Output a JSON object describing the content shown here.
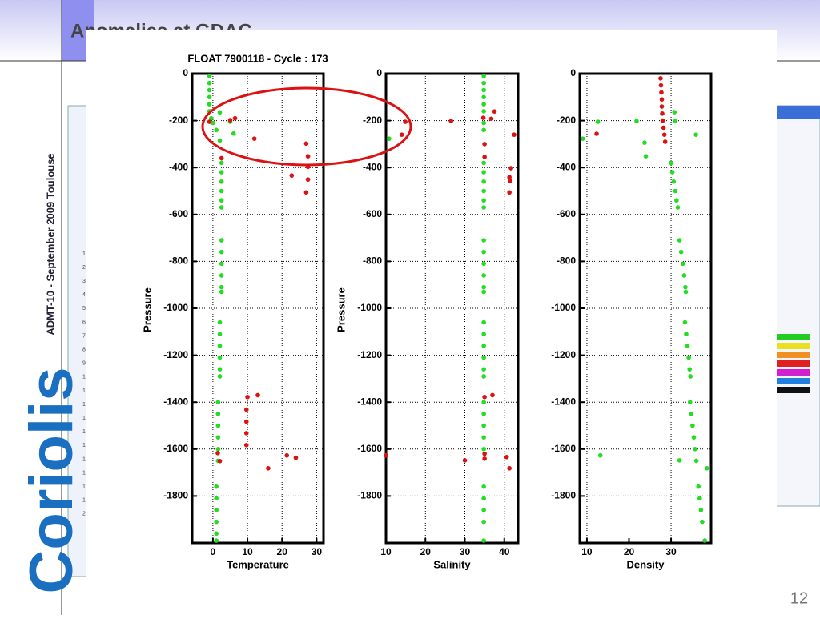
{
  "slide": {
    "title": "Anomalies at GDAC",
    "side_text": "ADMT-10 - September 2009  Toulouse",
    "logo": "Coriolis",
    "page_number": "12",
    "background_rows": [
      "1",
      "2",
      "3",
      "4",
      "5",
      "6",
      "7",
      "8",
      "9",
      "10",
      "11",
      "12",
      "13",
      "14",
      "15",
      "16",
      "17",
      "18",
      "19",
      "20"
    ]
  },
  "chart_data": [
    {
      "type": "scatter",
      "title": "FLOAT 7900118 - Cycle : 173",
      "x_label": "Temperature",
      "y_label": "Pressure",
      "xlim": [
        -6,
        32
      ],
      "ylim": [
        -2000,
        0
      ],
      "xticks": [
        0,
        10,
        20,
        30
      ],
      "yticks": [
        0,
        -200,
        -400,
        -600,
        -800,
        -1000,
        -1200,
        -1400,
        -1600,
        -1800
      ],
      "grid": true,
      "series": [
        {
          "color": "#22dd22",
          "x": [
            -1,
            -1,
            -1,
            -1,
            -1,
            -1,
            -0.5,
            0,
            2,
            5,
            6,
            2,
            1,
            2.5,
            2.5,
            2.5,
            2.5,
            2.5,
            2.5,
            2.5,
            2.5,
            2.5,
            2.5,
            2.5,
            2.5,
            2,
            2,
            2,
            2,
            2,
            2,
            1.5,
            1.5,
            1.5,
            1.5,
            1.5,
            1.5,
            1,
            1,
            1,
            1,
            1,
            1
          ],
          "y": [
            -10,
            -40,
            -70,
            -100,
            -130,
            -160,
            -190,
            -210,
            -165,
            -205,
            -255,
            -285,
            -240,
            -380,
            -420,
            -460,
            -500,
            -540,
            -570,
            -710,
            -760,
            -810,
            -860,
            -910,
            -930,
            -1060,
            -1110,
            -1160,
            -1210,
            -1260,
            -1290,
            -1400,
            -1450,
            -1500,
            -1550,
            -1600,
            -1650,
            -1760,
            -1810,
            -1860,
            -1910,
            -1960,
            -1990
          ]
        },
        {
          "color": "#dd1111",
          "x": [
            -1,
            5,
            6.4,
            12,
            27,
            27.5,
            27.5,
            22.8,
            27.5,
            27,
            2.5,
            10,
            13,
            9.7,
            9.7,
            9.7,
            9.7,
            1.4,
            2,
            16,
            21.4,
            24
          ],
          "y": [
            -205,
            -198,
            -190,
            -277,
            -298,
            -352,
            -397,
            -434,
            -451,
            -506,
            -360,
            -1378,
            -1370,
            -1432,
            -1483,
            -1532,
            -1583,
            -1617,
            -1651,
            -1682,
            -1627,
            -1637
          ]
        }
      ]
    },
    {
      "type": "scatter",
      "x_label": "Salinity",
      "y_label": "Pressure",
      "xlim": [
        10,
        43.5
      ],
      "ylim": [
        -2000,
        0
      ],
      "xticks": [
        10,
        20,
        30,
        40
      ],
      "yticks": [
        0,
        -200,
        -400,
        -600,
        -800,
        -1000,
        -1200,
        -1400,
        -1600,
        -1800
      ],
      "grid": true,
      "series": [
        {
          "color": "#22dd22",
          "x": [
            34.8,
            34.8,
            34.8,
            34.8,
            34.8,
            34.8,
            34.8,
            34.8,
            10.8,
            34.8,
            34.8,
            34.8,
            34.8,
            34.8,
            34.8,
            34.8,
            34.8,
            34.8,
            34.8,
            34.8,
            34.8,
            34.8,
            34.8,
            34.8,
            34.8,
            34.8,
            34.8,
            34.8,
            34.8,
            34.8,
            34.8,
            34.8,
            34.8,
            34.8,
            34.8,
            34.8,
            34.8
          ],
          "y": [
            -10,
            -40,
            -70,
            -100,
            -130,
            -160,
            -210,
            -240,
            -277,
            -380,
            -420,
            -460,
            -500,
            -540,
            -570,
            -710,
            -760,
            -810,
            -860,
            -910,
            -930,
            -1060,
            -1110,
            -1160,
            -1210,
            -1260,
            -1290,
            -1400,
            -1450,
            -1500,
            -1550,
            -1600,
            -1760,
            -1810,
            -1860,
            -1910,
            -1990
          ]
        },
        {
          "color": "#dd1111",
          "x": [
            10,
            14.9,
            14,
            26.5,
            34.7,
            36.7,
            37.5,
            42.5,
            41.7,
            41.3,
            41.5,
            41.3,
            35,
            35,
            35,
            37,
            35,
            35,
            30,
            40.6,
            41.3
          ],
          "y": [
            -1627,
            -205,
            -260,
            -202,
            -188,
            -192,
            -161,
            -260,
            -403,
            -441,
            -458,
            -506,
            -355,
            -300,
            -1378,
            -1370,
            -1620,
            -1641,
            -1648,
            -1634,
            -1682
          ]
        }
      ]
    },
    {
      "type": "scatter",
      "x_label": "Density",
      "xlim": [
        8.3,
        39.5
      ],
      "ylim": [
        -2000,
        0
      ],
      "xticks": [
        10,
        20,
        30
      ],
      "yticks": [
        0,
        -200,
        -400,
        -600,
        -800,
        -1000,
        -1200,
        -1400,
        -1600,
        -1800
      ],
      "grid": true,
      "series": [
        {
          "color": "#22dd22",
          "x": [
            12.6,
            21.8,
            9,
            23.7,
            24,
            35.9,
            30.8,
            31,
            30,
            30.3,
            30.6,
            31,
            31.3,
            31.6,
            32,
            32.4,
            32.8,
            33.1,
            33.4,
            33.5,
            33.3,
            33.6,
            33.9,
            34.2,
            34.4,
            34.6,
            34.5,
            34.8,
            35.1,
            35.4,
            35.7,
            36,
            36.5,
            36.8,
            37.1,
            37.4,
            38,
            13.2,
            32,
            38.5
          ],
          "y": [
            -205,
            -202,
            -277,
            -294,
            -352,
            -260,
            -164,
            -202,
            -380,
            -420,
            -460,
            -500,
            -540,
            -570,
            -710,
            -760,
            -810,
            -860,
            -910,
            -930,
            -1060,
            -1110,
            -1160,
            -1210,
            -1260,
            -1290,
            -1400,
            -1450,
            -1500,
            -1550,
            -1600,
            -1650,
            -1760,
            -1810,
            -1860,
            -1910,
            -1990,
            -1627,
            -1648,
            -1682
          ]
        },
        {
          "color": "#dd1111",
          "x": [
            27.5,
            27.6,
            27.7,
            27.8,
            27.8,
            27.9,
            28,
            28.2,
            28.4,
            28.6,
            12.3
          ],
          "y": [
            -20,
            -50,
            -80,
            -110,
            -140,
            -170,
            -200,
            -230,
            -260,
            -290,
            -256
          ]
        }
      ]
    }
  ]
}
